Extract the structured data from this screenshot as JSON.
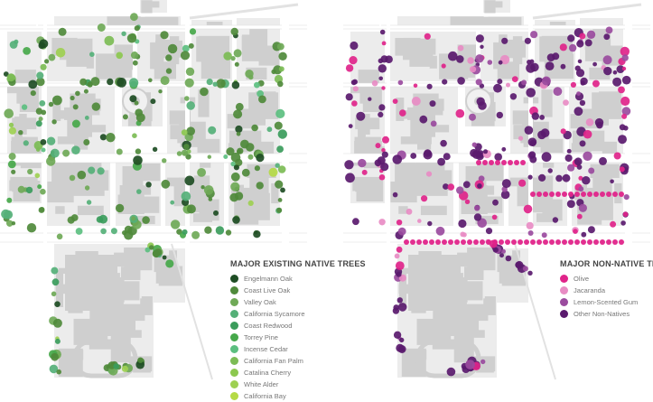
{
  "native_map": {
    "legend_title": "MAJOR EXISTING NATIVE TREES",
    "items": [
      {
        "label": "Engelmann Oak",
        "color": "#1e4d24"
      },
      {
        "label": "Coast Live Oak",
        "color": "#4f8a3b"
      },
      {
        "label": "Valley Oak",
        "color": "#6fa957"
      },
      {
        "label": "California Sycamore",
        "color": "#55b078"
      },
      {
        "label": "Coast Redwood",
        "color": "#3b9c5c"
      },
      {
        "label": "Torrey Pine",
        "color": "#46a84a"
      },
      {
        "label": "Incense Cedar",
        "color": "#5cbf80"
      },
      {
        "label": "California Fan Palm",
        "color": "#7cbc55"
      },
      {
        "label": "Catalina Cherry",
        "color": "#8cc84f"
      },
      {
        "label": "White Alder",
        "color": "#9ed052"
      },
      {
        "label": "California Bay",
        "color": "#b5da46"
      }
    ]
  },
  "nonnative_map": {
    "legend_title": "MAJOR NON-NATIVE TREES",
    "items": [
      {
        "label": "Olive",
        "color": "#e0248a"
      },
      {
        "label": "Jacaranda",
        "color": "#e88cc4"
      },
      {
        "label": "Lemon-Scented Gum",
        "color": "#9a4b9e"
      },
      {
        "label": "Other Non-Natives",
        "color": "#5a1a6e"
      }
    ]
  },
  "colors": {
    "building": "#cfcfcf",
    "street": "#ffffff",
    "outline": "#dddddd"
  }
}
